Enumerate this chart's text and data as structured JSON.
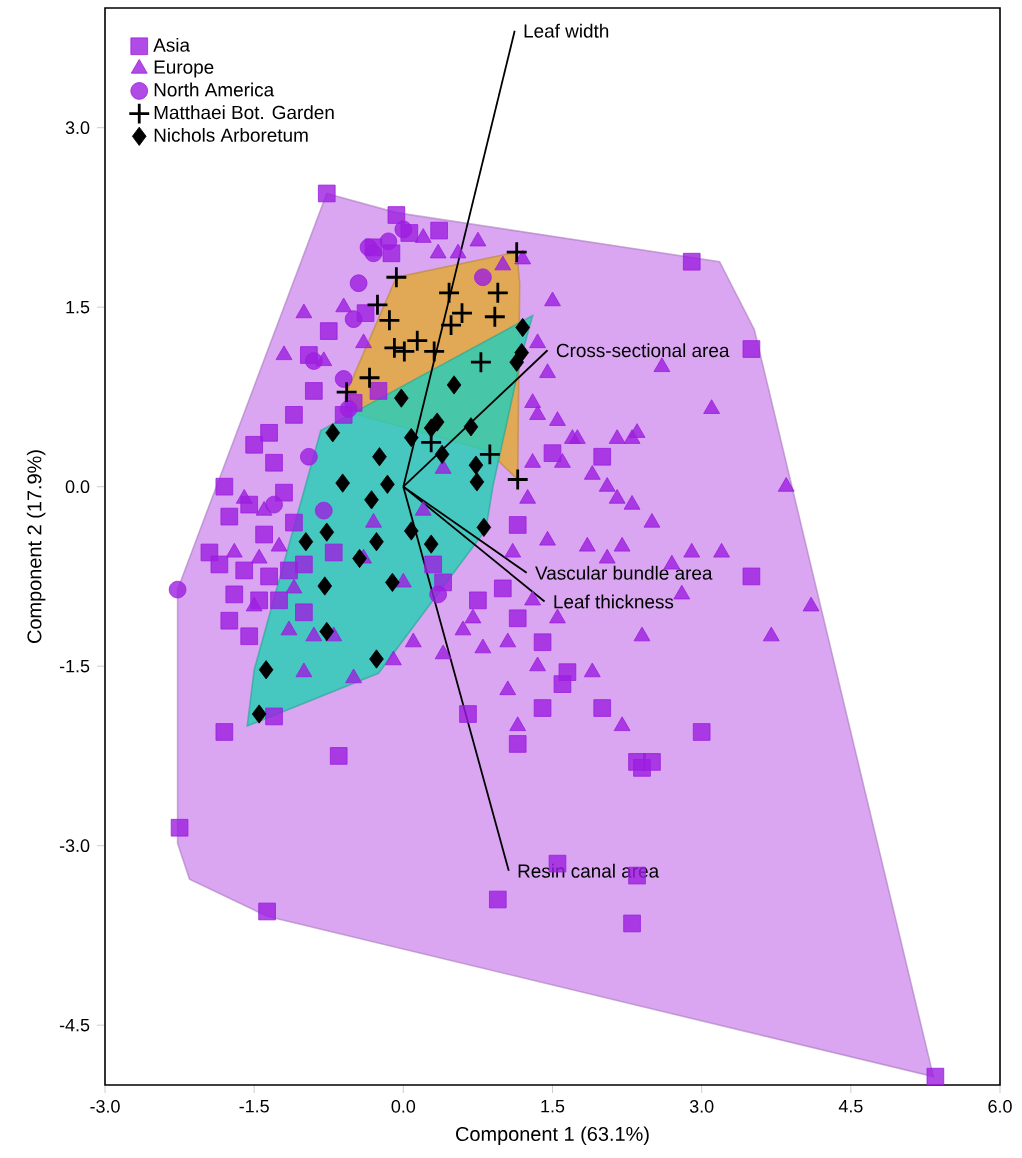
{
  "chart_data": {
    "type": "scatter",
    "xlabel": "Component 1 (63.1%)",
    "ylabel": "Component 2 (17.9%)",
    "xlim": [
      -3.0,
      6.0
    ],
    "ylim": [
      -5.0,
      4.0
    ],
    "xticks": [
      {
        "value": -3,
        "label": "-3.0"
      },
      {
        "value": -1.5,
        "label": "-1.5"
      },
      {
        "value": 0,
        "label": "0.0"
      },
      {
        "value": 1.5,
        "label": "1.5"
      },
      {
        "value": 3,
        "label": "3.0"
      },
      {
        "value": 4.5,
        "label": "4.5"
      },
      {
        "value": 6,
        "label": "6.0"
      }
    ],
    "yticks": [
      {
        "value": -4.5,
        "label": "-4.5"
      },
      {
        "value": -3,
        "label": "-3.0"
      },
      {
        "value": -1.5,
        "label": "-1.5"
      },
      {
        "value": 0,
        "label": "0.0"
      },
      {
        "value": 1.5,
        "label": "1.5"
      },
      {
        "value": 3,
        "label": "3.0"
      }
    ],
    "legend": "top left",
    "series": [
      {
        "type": "area",
        "color": "#d396ee",
        "x": [
          -0.77,
          -0.07,
          3.18,
          3.53,
          5.33,
          -1.37,
          -2.15,
          -2.27,
          -2.27
        ],
        "values": [
          2.45,
          2.29,
          1.88,
          1.31,
          -4.93,
          -3.59,
          -3.28,
          -2.98,
          -0.86
        ]
      },
      {
        "name": "Asia",
        "marker": "square",
        "color": "#9c1ee0",
        "x": [
          -0.77,
          -0.07,
          0.36,
          0.06,
          -0.3,
          -0.12,
          -0.38,
          -0.75,
          -0.95,
          -0.9,
          -1.1,
          -1.5,
          -1.35,
          -1.3,
          -1.8,
          -1.75,
          -1.55,
          -1.2,
          -1.1,
          -1.4,
          -1.95,
          -1.85,
          -1.6,
          -1.35,
          -1.15,
          -1.45,
          -1.7,
          -1.75,
          -1.25,
          -1.0,
          -1.0,
          -0.7,
          -1.55,
          -1.3,
          -1.8,
          -0.65,
          -2.25,
          -1.37,
          1.5,
          2.0,
          1.15,
          1.0,
          1.15,
          1.4,
          1.65,
          1.6,
          1.4,
          0.65,
          1.15,
          0.75,
          0.4,
          0.3,
          2.0,
          2.35,
          2.4,
          2.5,
          3.0,
          3.5,
          3.5,
          2.9,
          1.55,
          2.35,
          0.95,
          2.3,
          5.35,
          -0.5,
          -0.6,
          -0.25
        ],
        "values": [
          2.45,
          2.27,
          2.14,
          2.12,
          2.0,
          1.95,
          1.45,
          1.3,
          1.1,
          0.8,
          0.6,
          0.35,
          0.45,
          0.2,
          0.0,
          -0.25,
          -0.15,
          -0.05,
          -0.3,
          -0.4,
          -0.55,
          -0.65,
          -0.7,
          -0.75,
          -0.7,
          -0.95,
          -0.9,
          -1.12,
          -0.95,
          -1.05,
          -0.65,
          -0.55,
          -1.25,
          -1.92,
          -2.05,
          -2.25,
          -2.85,
          -3.55,
          0.28,
          0.25,
          -0.32,
          -0.85,
          -1.1,
          -1.3,
          -1.55,
          -1.65,
          -1.85,
          -1.9,
          -2.15,
          -0.95,
          -0.8,
          -0.65,
          -1.85,
          -2.3,
          -2.35,
          -2.3,
          -2.05,
          -0.75,
          1.15,
          1.88,
          -3.15,
          -3.25,
          -3.45,
          -3.65,
          -4.93,
          0.7,
          0.6,
          0.8
        ]
      },
      {
        "name": "Europe",
        "marker": "triangle",
        "color": "#9c1ee0",
        "x": [
          0.2,
          0.35,
          0.55,
          0.75,
          1.0,
          1.2,
          1.5,
          1.35,
          1.45,
          1.3,
          1.35,
          1.55,
          1.7,
          1.75,
          2.6,
          3.1,
          2.3,
          2.15,
          2.35,
          1.3,
          1.6,
          1.9,
          2.05,
          2.15,
          2.3,
          1.25,
          1.45,
          1.85,
          2.2,
          2.5,
          2.9,
          3.2,
          3.85,
          4.1,
          3.7,
          2.8,
          2.4,
          1.9,
          1.3,
          1.55,
          1.05,
          1.35,
          2.2,
          0.8,
          0.4,
          0.1,
          -0.1,
          -0.5,
          -0.7,
          -0.9,
          -1.0,
          0.6,
          0.7,
          0.4,
          -1.2,
          -1.0,
          -0.6,
          -0.8,
          -0.4,
          -1.6,
          -1.4,
          -1.25,
          -1.7,
          -1.45,
          -1.1,
          -1.5,
          -1.15,
          0.0,
          -0.3,
          -0.4,
          0.2,
          1.05,
          1.15,
          2.7,
          2.05,
          1.1
        ],
        "values": [
          2.08,
          1.95,
          1.95,
          2.05,
          1.85,
          1.9,
          1.55,
          1.2,
          0.95,
          0.7,
          0.6,
          0.55,
          0.4,
          0.4,
          1.0,
          0.65,
          0.4,
          0.4,
          0.45,
          0.2,
          0.2,
          0.1,
          0.0,
          -0.1,
          -0.15,
          -0.1,
          -0.45,
          -0.5,
          -0.5,
          -0.3,
          -0.55,
          -0.55,
          0.0,
          -1.0,
          -1.25,
          -0.9,
          -1.25,
          -1.55,
          -0.95,
          -1.1,
          -1.7,
          -1.5,
          -2.0,
          -1.35,
          -1.4,
          -1.3,
          -1.45,
          -1.6,
          -1.25,
          -1.25,
          -1.55,
          -1.2,
          -1.1,
          0.15,
          1.1,
          1.45,
          1.5,
          1.05,
          1.2,
          -0.1,
          -0.2,
          -0.5,
          -0.55,
          -0.6,
          -0.85,
          -1.0,
          -1.2,
          -0.8,
          -0.3,
          -0.6,
          -0.2,
          -1.3,
          -2.0,
          -0.65,
          -0.6,
          -0.55
        ]
      },
      {
        "name": "North America",
        "marker": "circle",
        "color": "#9c1ee0",
        "x": [
          -2.27,
          -0.35,
          0.0,
          -0.15,
          -0.45,
          -0.5,
          -0.9,
          -0.6,
          0.8,
          -0.3,
          -0.95,
          -1.3,
          -0.8,
          0.35,
          -0.55
        ],
        "values": [
          -0.86,
          2.0,
          2.15,
          2.05,
          1.7,
          1.4,
          1.05,
          0.9,
          1.75,
          1.95,
          0.25,
          -0.15,
          -0.2,
          -0.9,
          0.65
        ]
      },
      {
        "type": "area",
        "color": "#e2a93a",
        "x": [
          -0.57,
          -0.07,
          1.14,
          1.17,
          1.15,
          0.85,
          -0.45
        ],
        "values": [
          0.79,
          1.75,
          1.96,
          1.7,
          0.06,
          0.3,
          0.6
        ]
      },
      {
        "type": "area",
        "color": "#2ccdb6",
        "x": [
          -1.57,
          -1.5,
          -0.83,
          1.3,
          1.19,
          0.9,
          0.83,
          -0.25
        ],
        "values": [
          -2.0,
          -1.53,
          0.47,
          1.43,
          1.1,
          0.0,
          -0.36,
          -1.56
        ]
      },
      {
        "type": "line",
        "color": "#000000",
        "x": [
          0,
          1.12
        ],
        "values": [
          0,
          3.81
        ]
      },
      {
        "type": "line",
        "color": "#000000",
        "x": [
          0,
          1.45
        ],
        "values": [
          0,
          1.14
        ]
      },
      {
        "type": "line",
        "color": "#000000",
        "x": [
          0,
          1.24
        ],
        "values": [
          0,
          -0.72
        ]
      },
      {
        "type": "line",
        "color": "#000000",
        "x": [
          0,
          1.42
        ],
        "values": [
          0,
          -0.96
        ]
      },
      {
        "type": "line",
        "color": "#000000",
        "x": [
          0,
          1.06
        ],
        "values": [
          0,
          -3.21
        ]
      },
      {
        "name": "Matthaei Bot. Garden",
        "marker": "cross",
        "color": "#000000",
        "x": [
          1.14,
          -0.07,
          0.46,
          0.95,
          -0.26,
          -0.14,
          0.59,
          0.48,
          0.92,
          0.14,
          -0.09,
          0.01,
          0.31,
          -0.34,
          -0.57,
          0.78,
          0.28,
          0.87,
          1.15
        ],
        "values": [
          1.96,
          1.75,
          1.62,
          1.62,
          1.52,
          1.39,
          1.45,
          1.35,
          1.42,
          1.22,
          1.16,
          1.13,
          1.13,
          0.91,
          0.79,
          1.04,
          0.37,
          0.27,
          0.06
        ]
      },
      {
        "name": "Nichols Arboretum",
        "marker": "diamond",
        "color": "#000000",
        "x": [
          1.2,
          1.19,
          1.14,
          0.51,
          -0.02,
          -0.71,
          0.08,
          0.34,
          0.28,
          0.68,
          -0.24,
          0.39,
          0.73,
          0.74,
          -0.61,
          -0.16,
          -0.32,
          -0.77,
          -0.98,
          -0.27,
          0.08,
          0.28,
          0.81,
          -0.44,
          -0.79,
          -0.11,
          -0.77,
          -0.27,
          -1.38,
          -1.45
        ],
        "values": [
          1.33,
          1.12,
          1.04,
          0.85,
          0.74,
          0.45,
          0.41,
          0.54,
          0.49,
          0.5,
          0.25,
          0.27,
          0.18,
          0.04,
          0.03,
          0.02,
          -0.11,
          -0.38,
          -0.46,
          -0.46,
          -0.37,
          -0.48,
          -0.34,
          -0.6,
          -0.83,
          -0.8,
          -1.21,
          -1.44,
          -1.53,
          -1.9
        ]
      }
    ],
    "annotations": [
      {
        "text": "Leaf width",
        "x": 1.12,
        "y": 3.81
      },
      {
        "text": "Cross-sectional area",
        "x": 1.45,
        "y": 1.14
      },
      {
        "text": "Vascular bundle area",
        "x": 1.24,
        "y": -0.72
      },
      {
        "text": "Leaf thickness",
        "x": 1.42,
        "y": -0.96
      },
      {
        "text": "Resin canal area",
        "x": 1.06,
        "y": -3.21
      }
    ]
  }
}
